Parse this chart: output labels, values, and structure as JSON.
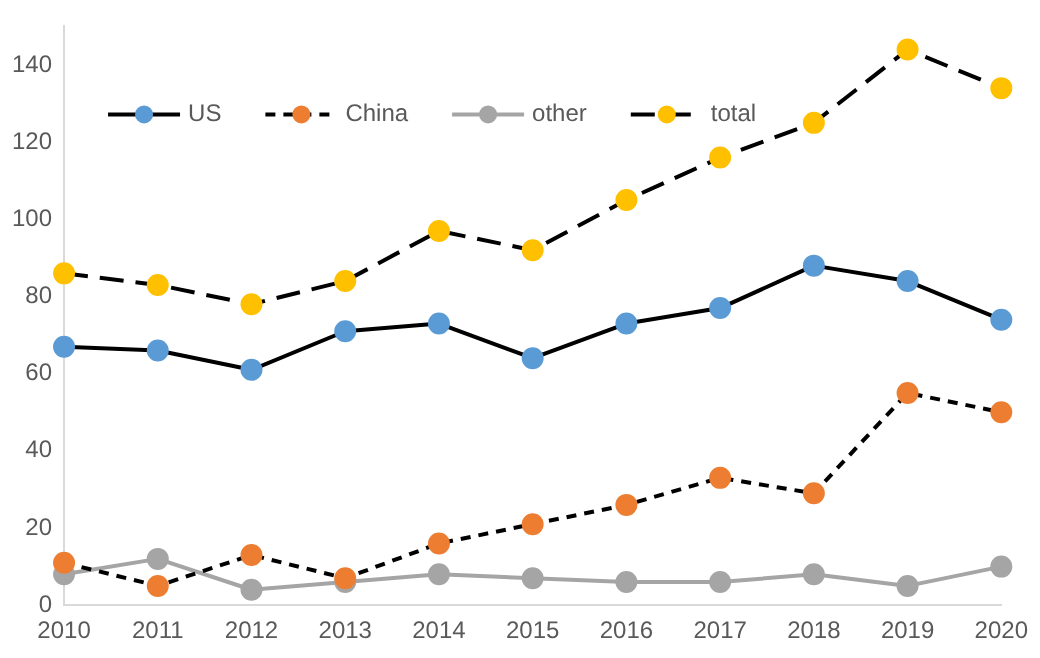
{
  "chart_data": {
    "type": "line",
    "categories": [
      "2010",
      "2011",
      "2012",
      "2013",
      "2014",
      "2015",
      "2016",
      "2017",
      "2018",
      "2019",
      "2020"
    ],
    "series": [
      {
        "name": "US",
        "color": "#000000",
        "colors": [
          "#5b9bd5",
          "#5b9bd5",
          "#5b9bd5",
          "#5b9bd5",
          "#5b9bd5",
          "#5b9bd5",
          "#5b9bd5",
          "#5b9bd5",
          "#5b9bd5",
          "#5b9bd5",
          "#5b9bd5"
        ],
        "line_style": "solid",
        "values": [
          67,
          66,
          61,
          71,
          73,
          64,
          73,
          77,
          88,
          84,
          74
        ]
      },
      {
        "name": "China",
        "color": "#000000",
        "colors": [
          "#ed7d31",
          "#ed7d31",
          "#ed7d31",
          "#ed7d31",
          "#ed7d31",
          "#ed7d31",
          "#ed7d31",
          "#ed7d31",
          "#ed7d31",
          "#ed7d31",
          "#ed7d31"
        ],
        "line_style": "dotted",
        "values": [
          11,
          5,
          13,
          7,
          16,
          21,
          26,
          33,
          29,
          55,
          50
        ]
      },
      {
        "name": "other",
        "color": "#a5a5a5",
        "colors": [
          "#a5a5a5",
          "#a5a5a5",
          "#a5a5a5",
          "#a5a5a5",
          "#a5a5a5",
          "#a5a5a5",
          "#a5a5a5",
          "#a5a5a5",
          "#a5a5a5",
          "#a5a5a5",
          "#a5a5a5"
        ],
        "line_style": "solid",
        "values": [
          8,
          12,
          4,
          6,
          8,
          7,
          6,
          6,
          8,
          5,
          10
        ]
      },
      {
        "name": "total",
        "color": "#000000",
        "colors": [
          "#ffc000",
          "#ffc000",
          "#ffc000",
          "#ffc000",
          "#ffc000",
          "#ffc000",
          "#ffc000",
          "#ffc000",
          "#ffc000",
          "#ffc000",
          "#ffc000"
        ],
        "line_style": "dashed",
        "values": [
          86,
          83,
          78,
          84,
          97,
          92,
          105,
          116,
          125,
          144,
          134
        ]
      }
    ],
    "ylim": [
      0,
      150
    ],
    "yticks": [
      0,
      20,
      40,
      60,
      80,
      100,
      120,
      140
    ],
    "grid": false,
    "legend": "top left",
    "marker": "circle"
  }
}
